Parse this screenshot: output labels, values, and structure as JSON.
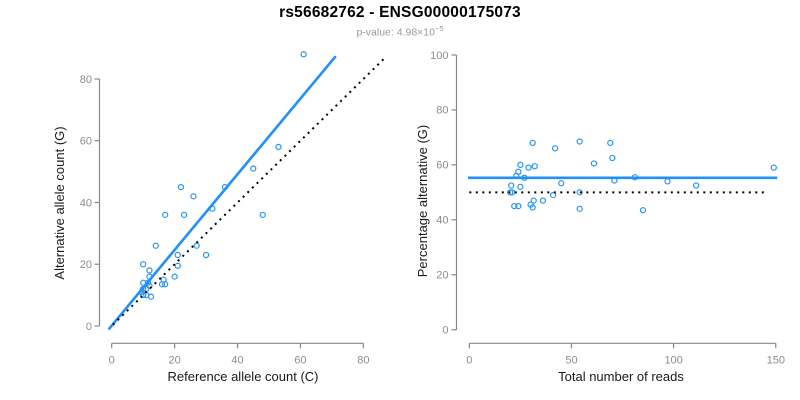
{
  "header": {
    "title": "rs56682762 - ENSG00000175073",
    "subtitle": "p-value: 4.98×10",
    "subtitle_exponent": "−5"
  },
  "colors": {
    "accent_blue": "#1E90FF",
    "identity_line_black": "#000000",
    "axis_gray": "#878787",
    "tick_label_gray": "#8c8c8c",
    "axis_title_black": "#1a1a1a",
    "subtitle_gray": "#999999"
  },
  "chart_data": [
    {
      "type": "scatter",
      "name": "allele-counts-scatter",
      "xlabel": "Reference allele count (C)",
      "ylabel": "Alternative allele count (G)",
      "xlim": [
        0,
        80
      ],
      "ylim": [
        0,
        80
      ],
      "xticks": [
        0,
        20,
        40,
        60,
        80
      ],
      "yticks": [
        0,
        20,
        40,
        60,
        80
      ],
      "grid": false,
      "marker": "open-circle",
      "points": [
        [
          9.5,
          11
        ],
        [
          10,
          10
        ],
        [
          11,
          10
        ],
        [
          12.5,
          9.5
        ],
        [
          10,
          12
        ],
        [
          11,
          12
        ],
        [
          12,
          13
        ],
        [
          10,
          14
        ],
        [
          11.5,
          14
        ],
        [
          16,
          13.5
        ],
        [
          17,
          13.5
        ],
        [
          16.5,
          15
        ],
        [
          12,
          16
        ],
        [
          20,
          16
        ],
        [
          12,
          18
        ],
        [
          21,
          19.5
        ],
        [
          10,
          20
        ],
        [
          21,
          23
        ],
        [
          30,
          23
        ],
        [
          14,
          26
        ],
        [
          27,
          26
        ],
        [
          17,
          36
        ],
        [
          23,
          36
        ],
        [
          48,
          36
        ],
        [
          32,
          38
        ],
        [
          26,
          42
        ],
        [
          22,
          45
        ],
        [
          36,
          45
        ],
        [
          45,
          51
        ],
        [
          53,
          58
        ],
        [
          61,
          88
        ]
      ],
      "lines": [
        {
          "name": "fit-line",
          "style": "solid",
          "color": "#1E90FF",
          "width": 2.6,
          "x1": -1.0,
          "y1": -1.1,
          "x2": 71.2,
          "y2": 87.4
        },
        {
          "name": "identity-line",
          "style": "dotted",
          "color": "#000000",
          "width": 2,
          "x1": 0.4,
          "y1": 0.4,
          "x2": 87.3,
          "y2": 87.3
        }
      ]
    },
    {
      "type": "scatter",
      "name": "percentage-vs-reads-scatter",
      "xlabel": "Total number of reads",
      "ylabel": "Percentage alternative (G)",
      "xlim": [
        0,
        150
      ],
      "ylim": [
        0,
        100
      ],
      "xticks": [
        0,
        50,
        100,
        150
      ],
      "yticks": [
        0,
        20,
        40,
        60,
        80,
        100
      ],
      "grid": false,
      "marker": "open-circle",
      "points": [
        [
          31,
          68
        ],
        [
          54,
          68.5
        ],
        [
          69,
          68
        ],
        [
          42,
          66
        ],
        [
          70,
          62.5
        ],
        [
          61,
          60.5
        ],
        [
          149,
          59
        ],
        [
          25,
          60
        ],
        [
          29,
          59
        ],
        [
          32,
          59.5
        ],
        [
          24,
          57.5
        ],
        [
          23,
          56
        ],
        [
          27,
          55.3
        ],
        [
          81,
          55.5
        ],
        [
          71,
          54.3
        ],
        [
          45,
          53.3
        ],
        [
          97,
          54
        ],
        [
          111,
          52.5
        ],
        [
          25,
          52
        ],
        [
          20.5,
          52.5
        ],
        [
          20,
          50
        ],
        [
          21,
          50
        ],
        [
          54,
          50
        ],
        [
          41,
          49
        ],
        [
          36,
          47
        ],
        [
          31.5,
          47
        ],
        [
          30,
          45.5
        ],
        [
          22,
          45
        ],
        [
          24,
          45
        ],
        [
          31,
          44.5
        ],
        [
          54,
          44
        ],
        [
          85,
          43.5
        ]
      ],
      "lines": [
        {
          "name": "mean-percentage-line",
          "style": "solid",
          "color": "#1E90FF",
          "width": 2.6,
          "x1": -0.6,
          "y1": 55.3,
          "x2": 150.6,
          "y2": 55.3
        },
        {
          "name": "null-50-percent-line",
          "style": "dotted",
          "color": "#000000",
          "width": 2,
          "x1": 0,
          "y1": 50,
          "x2": 146,
          "y2": 50
        }
      ]
    }
  ]
}
